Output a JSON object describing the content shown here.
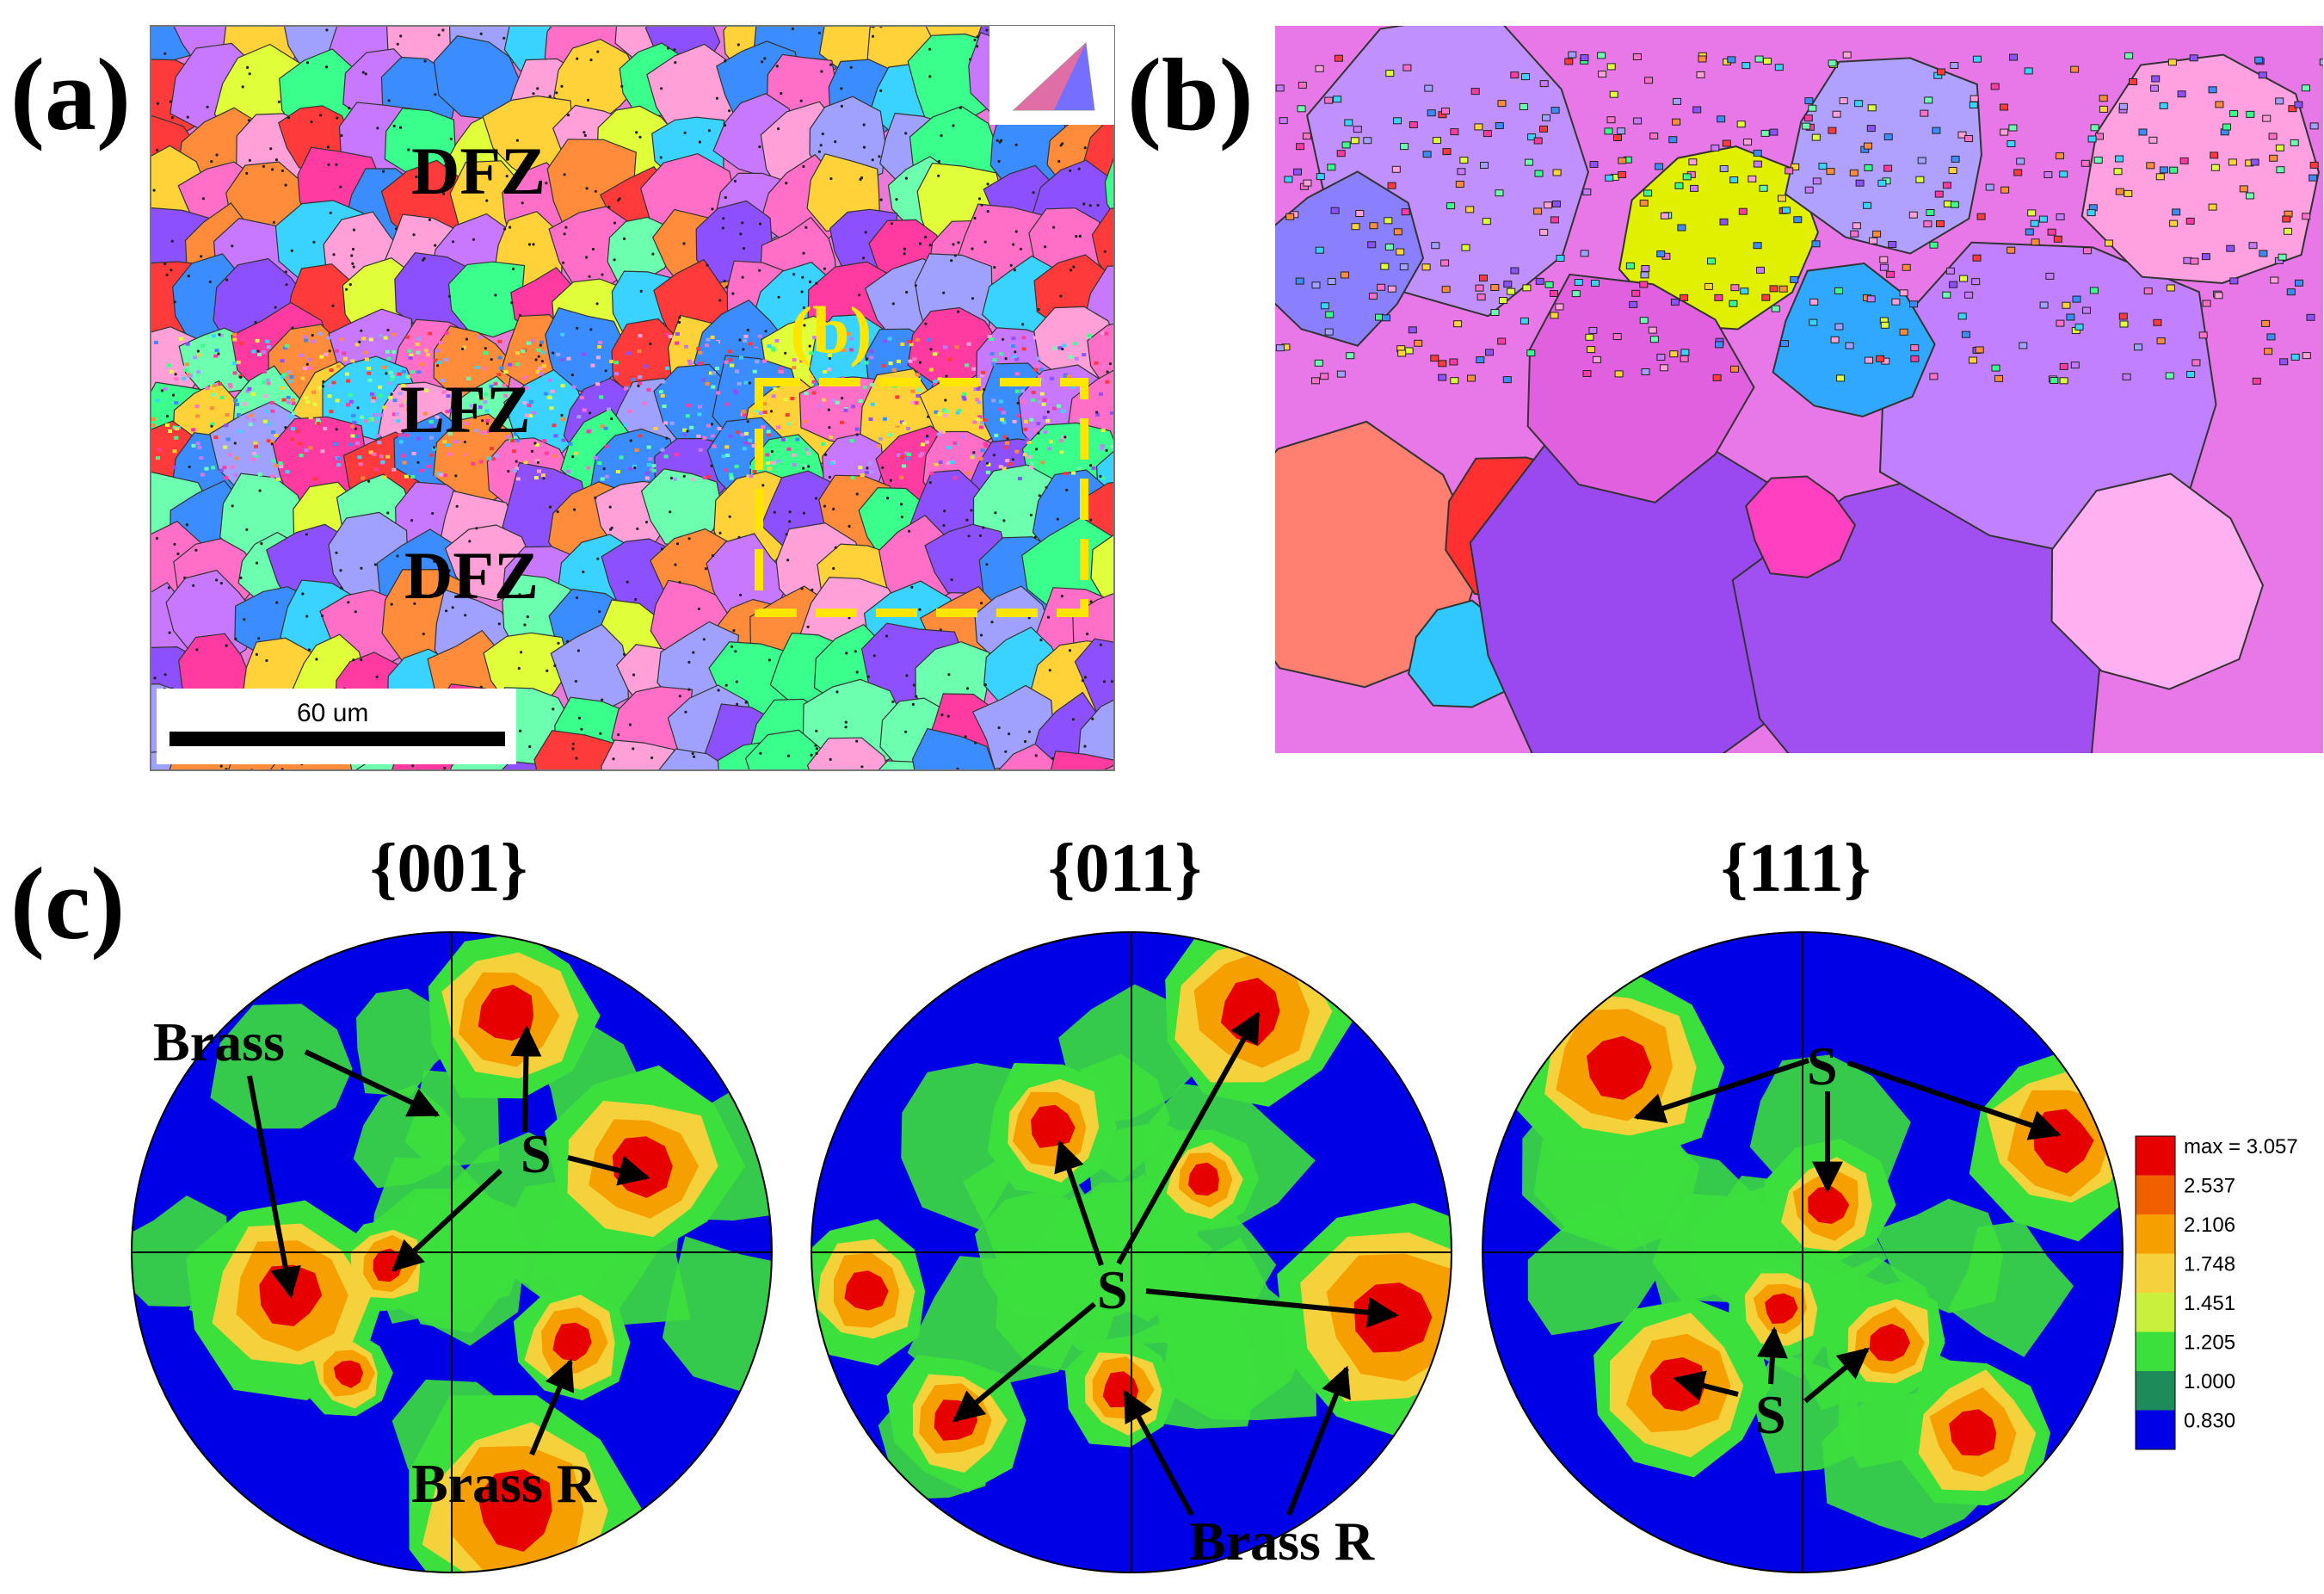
{
  "panels": {
    "a": {
      "label": "(a)",
      "zones": [
        "DFZ",
        "LFZ",
        "DFZ"
      ],
      "inset_label": "(b)",
      "scale_bar": "60 um"
    },
    "b": {
      "label": "(b)"
    },
    "c": {
      "label": "(c)",
      "pole_figures": [
        {
          "title": "{001}",
          "annotations": [
            "Brass",
            "S",
            "Brass R"
          ]
        },
        {
          "title": "{011}",
          "annotations": [
            "S",
            "Brass R"
          ]
        },
        {
          "title": "{111}",
          "annotations": [
            "S",
            "S"
          ]
        }
      ],
      "legend": {
        "levels": [
          "max = 3.057",
          "2.537",
          "2.106",
          "1.748",
          "1.451",
          "1.205",
          "1.000",
          "0.830"
        ],
        "colors": [
          "#e60000",
          "#f06000",
          "#f5a000",
          "#f5d23c",
          "#c8f03c",
          "#3ce03c",
          "#1e8c5a",
          "#0000e6"
        ]
      }
    }
  },
  "colors": {
    "ebsd_palette": [
      "#ff6ec7",
      "#c878ff",
      "#8c50ff",
      "#ff3a3a",
      "#ff8c3a",
      "#3ad2ff",
      "#3a8cff",
      "#3aff8c",
      "#e0ff3a",
      "#ff3aa0",
      "#a0a0ff",
      "#ffa0d8",
      "#6cffb0",
      "#ffd23a"
    ],
    "inset_box": "#ffe600",
    "pf_blue": "#0000e6",
    "pf_green": "#3ce03c",
    "pf_yellow": "#f5d23c",
    "pf_orange": "#f5a000",
    "pf_red": "#e60000"
  }
}
